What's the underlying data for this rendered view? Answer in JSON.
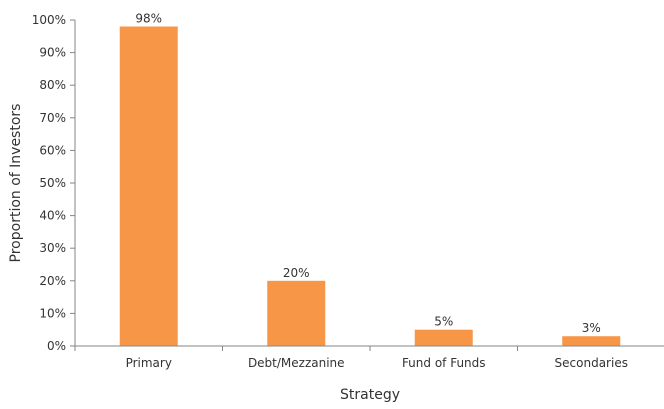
{
  "chart_data": {
    "type": "bar",
    "title": "",
    "xlabel": "Strategy",
    "ylabel": "Proportion of Investors",
    "categories": [
      "Primary",
      "Debt/Mezzanine",
      "Fund of Funds",
      "Secondaries"
    ],
    "values": [
      98,
      20,
      5,
      3
    ],
    "data_labels": [
      "98%",
      "20%",
      "5%",
      "3%"
    ],
    "ylim": [
      0,
      100
    ],
    "yticks": [
      0,
      10,
      20,
      30,
      40,
      50,
      60,
      70,
      80,
      90,
      100
    ],
    "ytick_labels": [
      "0%",
      "10%",
      "20%",
      "30%",
      "40%",
      "50%",
      "60%",
      "70%",
      "80%",
      "90%",
      "100%"
    ],
    "grid": false,
    "legend": "none",
    "bar_color": "#F79646",
    "axis_color": "#868686"
  }
}
